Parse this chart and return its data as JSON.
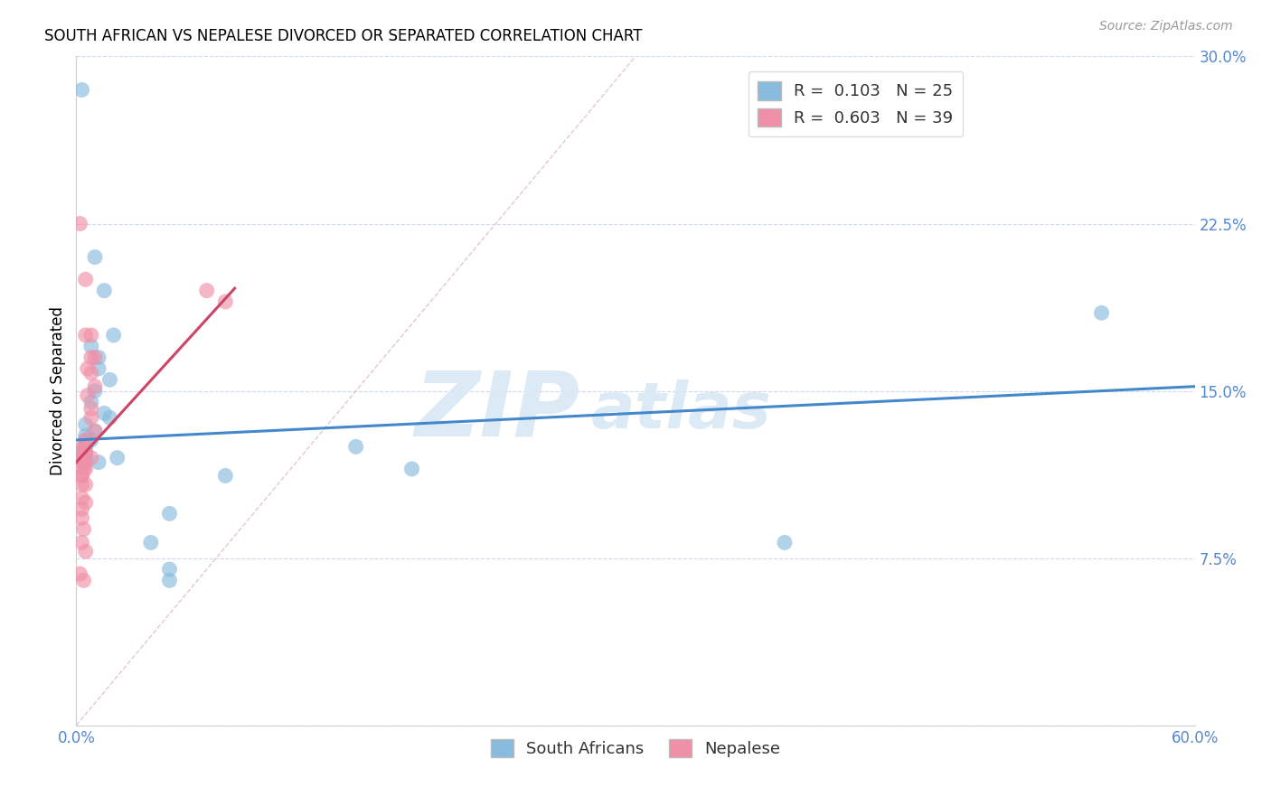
{
  "title": "SOUTH AFRICAN VS NEPALESE DIVORCED OR SEPARATED CORRELATION CHART",
  "source": "Source: ZipAtlas.com",
  "ylabel": "Divorced or Separated",
  "xlim": [
    0.0,
    0.6
  ],
  "ylim": [
    0.0,
    0.3
  ],
  "xticks": [
    0.0,
    0.1,
    0.2,
    0.3,
    0.4,
    0.5,
    0.6
  ],
  "yticks": [
    0.0,
    0.075,
    0.15,
    0.225,
    0.3
  ],
  "xtick_labels": [
    "0.0%",
    "",
    "",
    "",
    "",
    "",
    "60.0%"
  ],
  "ytick_labels": [
    "",
    "7.5%",
    "15.0%",
    "22.5%",
    "30.0%"
  ],
  "sa_color": "#88bbdd",
  "nep_color": "#f090a8",
  "ref_line_color": "#ddbbbb",
  "sa_trend_color": "#4488cc",
  "nep_trend_color": "#cc4466",
  "watermark_zip": "ZIP",
  "watermark_atlas": "atlas",
  "sa_points": [
    [
      0.003,
      0.285
    ],
    [
      0.01,
      0.21
    ],
    [
      0.015,
      0.195
    ],
    [
      0.02,
      0.175
    ],
    [
      0.008,
      0.17
    ],
    [
      0.012,
      0.165
    ],
    [
      0.012,
      0.16
    ],
    [
      0.018,
      0.155
    ],
    [
      0.01,
      0.15
    ],
    [
      0.008,
      0.145
    ],
    [
      0.015,
      0.14
    ],
    [
      0.018,
      0.138
    ],
    [
      0.01,
      0.132
    ],
    [
      0.008,
      0.128
    ],
    [
      0.005,
      0.125
    ],
    [
      0.003,
      0.122
    ],
    [
      0.022,
      0.12
    ],
    [
      0.012,
      0.118
    ],
    [
      0.005,
      0.135
    ],
    [
      0.005,
      0.13
    ],
    [
      0.005,
      0.128
    ],
    [
      0.005,
      0.125
    ],
    [
      0.005,
      0.122
    ],
    [
      0.005,
      0.12
    ],
    [
      0.005,
      0.118
    ],
    [
      0.15,
      0.125
    ],
    [
      0.18,
      0.115
    ],
    [
      0.08,
      0.112
    ],
    [
      0.05,
      0.095
    ],
    [
      0.04,
      0.082
    ],
    [
      0.05,
      0.07
    ],
    [
      0.05,
      0.065
    ],
    [
      0.38,
      0.082
    ],
    [
      0.55,
      0.185
    ]
  ],
  "nep_points": [
    [
      0.002,
      0.225
    ],
    [
      0.005,
      0.2
    ],
    [
      0.005,
      0.175
    ],
    [
      0.008,
      0.175
    ],
    [
      0.008,
      0.165
    ],
    [
      0.01,
      0.165
    ],
    [
      0.006,
      0.16
    ],
    [
      0.008,
      0.158
    ],
    [
      0.01,
      0.152
    ],
    [
      0.006,
      0.148
    ],
    [
      0.008,
      0.142
    ],
    [
      0.008,
      0.138
    ],
    [
      0.01,
      0.132
    ],
    [
      0.005,
      0.128
    ],
    [
      0.004,
      0.125
    ],
    [
      0.005,
      0.122
    ],
    [
      0.008,
      0.12
    ],
    [
      0.003,
      0.118
    ],
    [
      0.005,
      0.115
    ],
    [
      0.003,
      0.112
    ],
    [
      0.005,
      0.108
    ],
    [
      0.003,
      0.102
    ],
    [
      0.005,
      0.1
    ],
    [
      0.003,
      0.097
    ],
    [
      0.003,
      0.093
    ],
    [
      0.004,
      0.088
    ],
    [
      0.003,
      0.082
    ],
    [
      0.005,
      0.078
    ],
    [
      0.002,
      0.068
    ],
    [
      0.004,
      0.065
    ],
    [
      0.07,
      0.195
    ],
    [
      0.08,
      0.19
    ],
    [
      0.004,
      0.125
    ],
    [
      0.004,
      0.122
    ],
    [
      0.003,
      0.12
    ],
    [
      0.004,
      0.118
    ],
    [
      0.004,
      0.115
    ],
    [
      0.003,
      0.112
    ],
    [
      0.003,
      0.108
    ]
  ],
  "sa_trend_x": [
    0.0,
    0.6
  ],
  "sa_trend_y": [
    0.128,
    0.152
  ],
  "nep_trend_x": [
    0.0,
    0.085
  ],
  "nep_trend_y": [
    0.118,
    0.196
  ]
}
